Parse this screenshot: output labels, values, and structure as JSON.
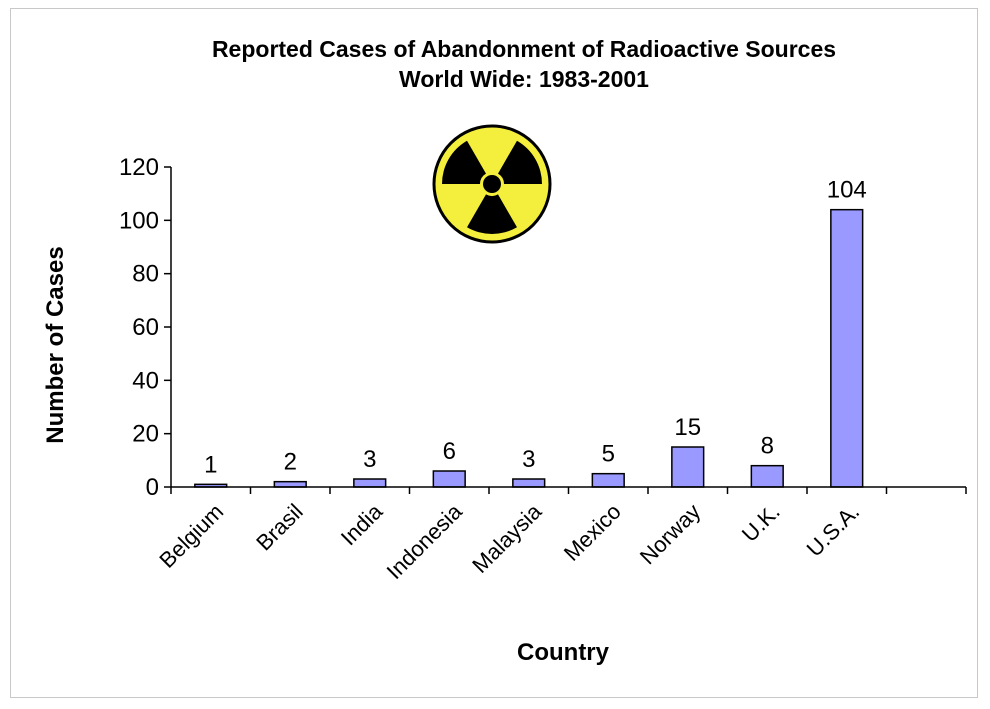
{
  "chart_data": {
    "type": "bar",
    "title": "Reported Cases of Abandonment of Radioactive  Sources",
    "subtitle": "World Wide: 1983-2001",
    "xlabel": "Country",
    "ylabel": "Number of Cases",
    "categories": [
      "Belgium",
      "Brasil",
      "India",
      "Indonesia",
      "Malaysia",
      "Mexico",
      "Norway",
      "U.K.",
      "U.S.A."
    ],
    "values": [
      1,
      2,
      3,
      6,
      3,
      5,
      15,
      8,
      104
    ],
    "data_labels": [
      "1",
      "2",
      "3",
      "6",
      "3",
      "5",
      "15",
      "8",
      "104"
    ],
    "ylim": [
      0,
      120
    ],
    "yticks": [
      0,
      20,
      40,
      60,
      80,
      100,
      120
    ],
    "ytick_labels": [
      "0",
      "20",
      "40",
      "60",
      "80",
      "100",
      "120"
    ],
    "grid": false,
    "legend": "none",
    "bar_color": "#9999ff",
    "bar_edge_color": "#000000",
    "decoration": "radiation-trefoil-icon"
  }
}
